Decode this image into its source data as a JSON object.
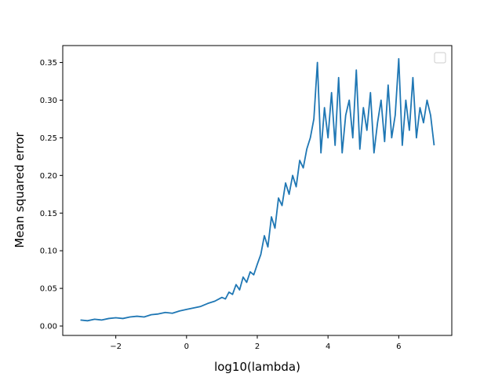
{
  "chart_data": {
    "type": "line",
    "title": "",
    "xlabel": "log10(lambda)",
    "ylabel": "Mean squared error",
    "xlim": [
      -3.5,
      7.5
    ],
    "ylim": [
      -0.0125,
      0.3725
    ],
    "x_ticks": [
      -2,
      0,
      2,
      4,
      6
    ],
    "x_tick_labels": [
      "−2",
      "0",
      "2",
      "4",
      "6"
    ],
    "y_ticks": [
      0.0,
      0.05,
      0.1,
      0.15,
      0.2,
      0.25,
      0.3,
      0.35
    ],
    "y_tick_labels": [
      "0.00",
      "0.05",
      "0.10",
      "0.15",
      "0.20",
      "0.25",
      "0.30",
      "0.35"
    ],
    "grid": false,
    "legend": {
      "placement": "top-right",
      "entries": []
    },
    "colors": {
      "series": "#1f77b4"
    },
    "series": [
      {
        "x": [
          -3.0,
          -2.8,
          -2.6,
          -2.4,
          -2.2,
          -2.0,
          -1.8,
          -1.6,
          -1.4,
          -1.2,
          -1.0,
          -0.8,
          -0.6,
          -0.4,
          -0.2,
          0.0,
          0.2,
          0.4,
          0.6,
          0.8,
          1.0,
          1.1,
          1.2,
          1.3,
          1.4,
          1.5,
          1.6,
          1.7,
          1.8,
          1.9,
          2.0,
          2.1,
          2.2,
          2.3,
          2.4,
          2.5,
          2.6,
          2.7,
          2.8,
          2.9,
          3.0,
          3.1,
          3.2,
          3.3,
          3.4,
          3.5,
          3.6,
          3.7,
          3.8,
          3.9,
          4.0,
          4.1,
          4.2,
          4.3,
          4.4,
          4.5,
          4.6,
          4.7,
          4.8,
          4.9,
          5.0,
          5.1,
          5.2,
          5.3,
          5.4,
          5.5,
          5.6,
          5.7,
          5.8,
          5.9,
          6.0,
          6.1,
          6.2,
          6.3,
          6.4,
          6.5,
          6.6,
          6.7,
          6.8,
          6.9,
          7.0
        ],
        "values": [
          0.008,
          0.007,
          0.009,
          0.008,
          0.01,
          0.011,
          0.01,
          0.012,
          0.013,
          0.012,
          0.015,
          0.016,
          0.018,
          0.017,
          0.02,
          0.022,
          0.024,
          0.026,
          0.03,
          0.033,
          0.038,
          0.036,
          0.045,
          0.042,
          0.055,
          0.048,
          0.065,
          0.058,
          0.072,
          0.068,
          0.082,
          0.095,
          0.12,
          0.105,
          0.145,
          0.13,
          0.17,
          0.16,
          0.19,
          0.175,
          0.2,
          0.185,
          0.22,
          0.21,
          0.235,
          0.25,
          0.275,
          0.35,
          0.23,
          0.29,
          0.25,
          0.31,
          0.24,
          0.33,
          0.23,
          0.28,
          0.3,
          0.25,
          0.34,
          0.235,
          0.29,
          0.26,
          0.31,
          0.23,
          0.27,
          0.3,
          0.245,
          0.32,
          0.25,
          0.28,
          0.355,
          0.24,
          0.3,
          0.26,
          0.33,
          0.25,
          0.29,
          0.27,
          0.3,
          0.28,
          0.24
        ]
      }
    ]
  }
}
